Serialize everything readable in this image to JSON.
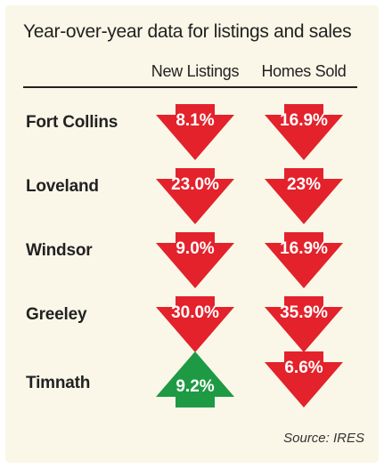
{
  "title": "Year-over-year data for listings and sales",
  "source": "Source: IRES",
  "colors": {
    "down": "#e3222c",
    "up": "#1e9a44",
    "panel": "#fbf7e8",
    "text": "#222222"
  },
  "chart_data": {
    "type": "table",
    "title": "Year-over-year data for listings and sales",
    "columns": [
      "New Listings",
      "Homes Sold"
    ],
    "rows": [
      {
        "label": "Fort Collins",
        "cells": [
          {
            "text": "8.1%",
            "value": -8.1,
            "direction": "down"
          },
          {
            "text": "16.9%",
            "value": -16.9,
            "direction": "down"
          }
        ]
      },
      {
        "label": "Loveland",
        "cells": [
          {
            "text": "23.0%",
            "value": -23.0,
            "direction": "down"
          },
          {
            "text": "23%",
            "value": -23,
            "direction": "down"
          }
        ]
      },
      {
        "label": "Windsor",
        "cells": [
          {
            "text": "9.0%",
            "value": -9.0,
            "direction": "down"
          },
          {
            "text": "16.9%",
            "value": -16.9,
            "direction": "down"
          }
        ]
      },
      {
        "label": "Greeley",
        "cells": [
          {
            "text": "30.0%",
            "value": -30.0,
            "direction": "down"
          },
          {
            "text": "35.9%",
            "value": -35.9,
            "direction": "down"
          }
        ]
      },
      {
        "label": "Timnath",
        "cells": [
          {
            "text": "9.2%",
            "value": 9.2,
            "direction": "up"
          },
          {
            "text": "6.6%",
            "value": -6.6,
            "direction": "down"
          }
        ]
      }
    ],
    "source": "Source: IRES"
  }
}
